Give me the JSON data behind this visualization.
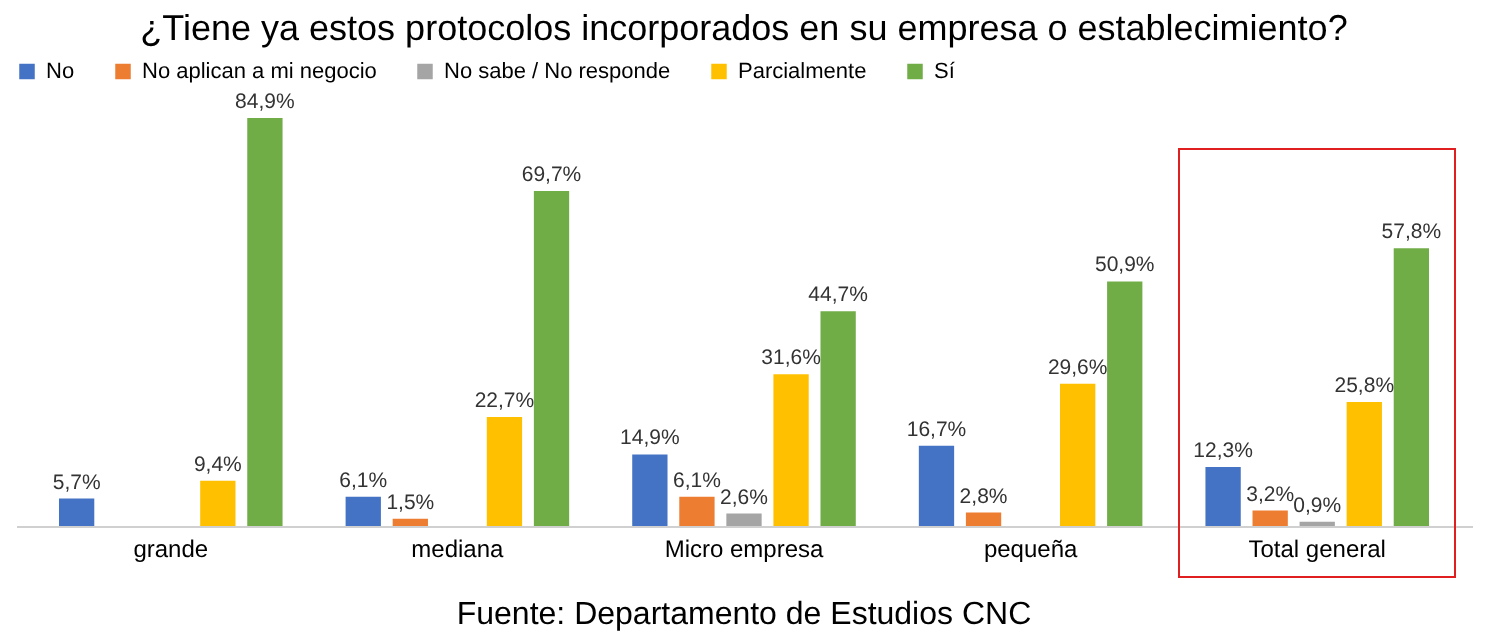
{
  "chart_data": {
    "type": "bar",
    "title": "¿Tiene ya estos protocolos incorporados en su empresa o establecimiento?",
    "categories": [
      "grande",
      "mediana",
      "Micro empresa",
      "pequeña",
      "Total general"
    ],
    "series": [
      {
        "name": "No",
        "color": "#4472c4",
        "values": [
          5.7,
          6.1,
          14.9,
          16.7,
          12.3
        ],
        "value_labels": [
          "5,7%",
          "6,1%",
          "14,9%",
          "16,7%",
          "12,3%"
        ]
      },
      {
        "name": "No aplican a mi negocio",
        "color": "#ed7d31",
        "values": [
          null,
          1.5,
          6.1,
          2.8,
          3.2
        ],
        "value_labels": [
          null,
          "1,5%",
          "6,1%",
          "2,8%",
          "3,2%"
        ]
      },
      {
        "name": "No sabe / No responde",
        "color": "#a5a5a5",
        "values": [
          null,
          null,
          2.6,
          null,
          0.9
        ],
        "value_labels": [
          null,
          null,
          "2,6%",
          null,
          "0,9%"
        ]
      },
      {
        "name": "Parcialmente",
        "color": "#ffc000",
        "values": [
          9.4,
          22.7,
          31.6,
          29.6,
          25.8
        ],
        "value_labels": [
          "9,4%",
          "22,7%",
          "31,6%",
          "29,6%",
          "25,8%"
        ]
      },
      {
        "name": "Sí",
        "color": "#70ad47",
        "values": [
          84.9,
          69.7,
          44.7,
          50.9,
          57.8
        ],
        "value_labels": [
          "84,9%",
          "69,7%",
          "44,7%",
          "50,9%",
          "57,8%"
        ]
      }
    ],
    "legend": "top",
    "grid": false,
    "annotations": [
      "Fuente: Departamento de Estudios CNC"
    ]
  }
}
